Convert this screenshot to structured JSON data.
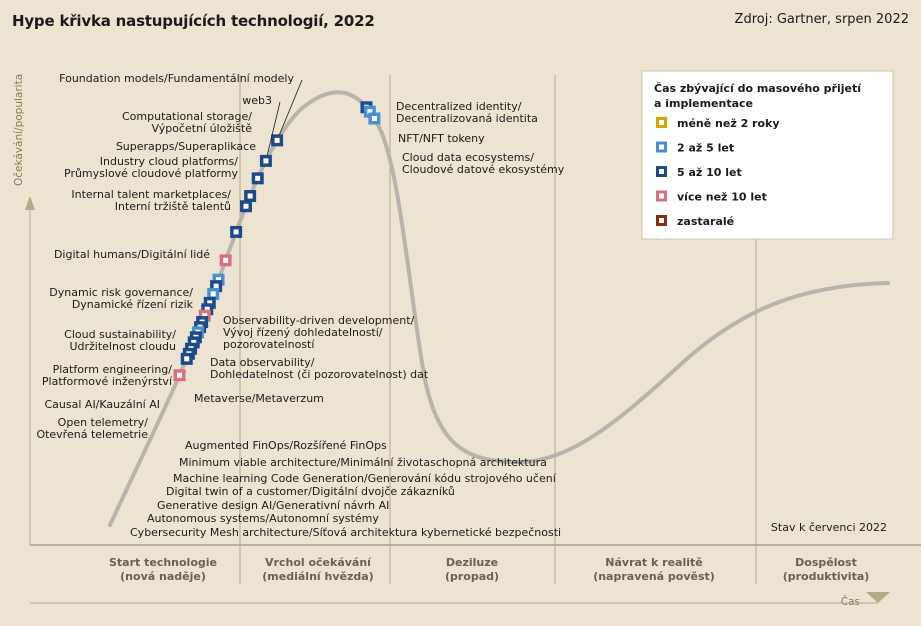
{
  "header": {
    "title": "Hype křivka nastupujících technologií, 2022",
    "source": "Zdroj: Gartner, srpen 2022"
  },
  "note": "Stav k červenci 2022",
  "colors": {
    "background": "#ece3d0",
    "curve": "#b8b4ad",
    "lt2": "#d9a400",
    "y2_5": "#4a90d0",
    "y5_10": "#1f4a8a",
    "gt10": "#d97080",
    "obsolete": "#8a2a10"
  },
  "chart_data": {
    "type": "scatter",
    "title": "Hype křivka nastupujících technologií, 2022",
    "xlabel": "Čas",
    "ylabel": "Očekávání/popularita",
    "phases": [
      {
        "line1": "Start technologie",
        "line2": "(nová naděje)"
      },
      {
        "line1": "Vrchol očekávání",
        "line2": "(mediální hvězda)"
      },
      {
        "line1": "Deziluze",
        "line2": "(propad)"
      },
      {
        "line1": "Návrat k realitě",
        "line2": "(napravená pověst)"
      },
      {
        "line1": "Dospělost",
        "line2": "(produktivita)"
      }
    ],
    "legend": {
      "title_line1": "Čas zbývající do masového přijetí",
      "title_line2": "a implementace",
      "items": [
        {
          "key": "lt2",
          "label": "méně než 2 roky"
        },
        {
          "key": "y2_5",
          "label": "2 až 5 let"
        },
        {
          "key": "y5_10",
          "label": "5 až 10 let"
        },
        {
          "key": "gt10",
          "label": "více než 10 let"
        },
        {
          "key": "obsolete",
          "label": "zastaralé"
        }
      ]
    },
    "points": [
      {
        "lines": [
          "Foundation models/Fundamentální modely"
        ],
        "cat": "y5_10",
        "t": 0.305
      },
      {
        "lines": [
          "web3"
        ],
        "cat": "y5_10",
        "t": 0.288
      },
      {
        "lines": [
          "Computational storage/",
          "Výpočetní úložiště"
        ],
        "cat": "y5_10",
        "t": 0.274
      },
      {
        "lines": [
          "Superapps/Superaplikace"
        ],
        "cat": "y5_10",
        "t": 0.26
      },
      {
        "lines": [
          "Industry cloud platforms/",
          "Průmyslové cloudové platformy"
        ],
        "cat": "y5_10",
        "t": 0.252
      },
      {
        "lines": [
          "Internal talent marketplaces/",
          "Interní tržiště talentů"
        ],
        "cat": "y5_10",
        "t": 0.232
      },
      {
        "lines": [
          "Digital humans/Digitální lidé"
        ],
        "cat": "gt10",
        "t": 0.21
      },
      {
        "lines": [
          "Dynamic risk governance/",
          "Dynamické řízení rizik"
        ],
        "cat": "y2_5",
        "t": 0.195
      },
      {
        "lines": [
          "Observability-driven development/",
          "Vývoj řízený dohledatelností/",
          "pozorovatelností"
        ],
        "cat": "y5_10",
        "t": 0.19
      },
      {
        "lines": [
          "Cloud sustainability/",
          "Udržitelnost cloudu"
        ],
        "cat": "y2_5",
        "t": 0.184
      },
      {
        "lines": [
          "Data observability/",
          "Dohledatelnost (či pozorovatelnost) dat"
        ],
        "cat": "y5_10",
        "t": 0.177
      },
      {
        "lines": [
          "Platform engineering/",
          "Platformové inženýrství"
        ],
        "cat": "y5_10",
        "t": 0.172
      },
      {
        "lines": [
          "Metaverse/Metaverzum"
        ],
        "cat": "gt10",
        "t": 0.167
      },
      {
        "lines": [
          "Causal AI/Kauzální AI"
        ],
        "cat": "y5_10",
        "t": 0.162
      },
      {
        "lines": [
          "Open telemetry/",
          "Otevřená telemetrie"
        ],
        "cat": "y5_10",
        "t": 0.158
      },
      {
        "lines": [
          "Augmented FinOps/Rozšířené FinOps"
        ],
        "cat": "y2_5",
        "t": 0.154
      },
      {
        "lines": [
          "Minimum viable architecture/Minimální životaschopná architektura"
        ],
        "cat": "y5_10",
        "t": 0.15
      },
      {
        "lines": [
          "Machine learning Code Generation/Generování kódu strojového učení"
        ],
        "cat": "y5_10",
        "t": 0.146
      },
      {
        "lines": [
          "Digital twin of a customer/Digitální dvojče zákazníků"
        ],
        "cat": "y5_10",
        "t": 0.141
      },
      {
        "lines": [
          "Generative design AI/Generativní návrh AI"
        ],
        "cat": "y5_10",
        "t": 0.137
      },
      {
        "lines": [
          "Autonomous systems/Autonomní systémy"
        ],
        "cat": "y5_10",
        "t": 0.133
      },
      {
        "lines": [
          "Cybersecurity Mesh architecture/Síťová architektura kybernetické bezpečnosti"
        ],
        "cat": "gt10",
        "t": 0.12
      },
      {
        "lines": [
          "Decentralized identity/",
          "Decentralizovaná identita"
        ],
        "cat": "y5_10",
        "t": 0.388
      },
      {
        "lines": [
          "NFT/NFT tokeny"
        ],
        "cat": "y2_5",
        "t": 0.392
      },
      {
        "lines": [
          "Cloud data ecosystems/",
          "Cloudové datové ekosystémy"
        ],
        "cat": "y2_5",
        "t": 0.398
      }
    ]
  }
}
